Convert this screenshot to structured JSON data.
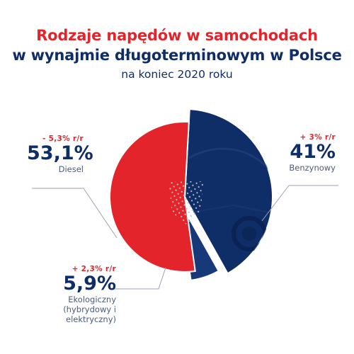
{
  "header": {
    "title_line1": "Rodzaje napędów w samochodach",
    "title_line2": "w wynajmie długoterminowym w Polsce",
    "subtitle": "na koniec 2020 roku"
  },
  "colors": {
    "diesel": "#e3252b",
    "benzynowy": "#0f2d66",
    "ekologiczny": "#17397a",
    "accent_red": "#e3252b",
    "navy": "#0f2d66"
  },
  "chart_data": {
    "type": "pie",
    "title": "Rodzaje napędów w samochodach w wynajmie długoterminowym w Polsce",
    "subtitle": "na koniec 2020 roku",
    "unit": "%",
    "slices": [
      {
        "name": "Diesel",
        "value": 53.1,
        "value_label": "53,1%",
        "change_label": "- 5,3% r/r"
      },
      {
        "name": "Benzynowy",
        "value": 41,
        "value_label": "41%",
        "change_label": "+ 3% r/r"
      },
      {
        "name": "Ekologiczny",
        "name_detail": "(hybrydowy i elektryczny)",
        "value": 5.9,
        "value_label": "5,9%",
        "change_label": "+ 2,3% r/r"
      }
    ]
  }
}
